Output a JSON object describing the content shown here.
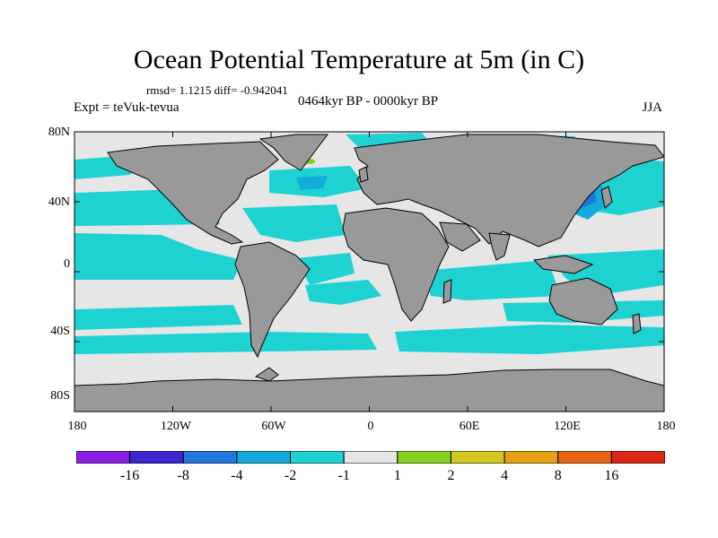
{
  "title": "Ocean Potential Temperature at 5m (in C)",
  "stats": "rmsd= 1.1215 diff= -0.942041",
  "experiment": "Expt = teVuk-tevua",
  "period": "0464kyr BP - 0000kyr BP",
  "season": "JJA",
  "lat_labels": [
    "80N",
    "40N",
    "0",
    "40S",
    "80S"
  ],
  "lon_labels": [
    "180",
    "120W",
    "60W",
    "0",
    "60E",
    "120E",
    "180"
  ],
  "colorbar": {
    "labels": [
      "-16",
      "-8",
      "-4",
      "-2",
      "-1",
      "1",
      "2",
      "4",
      "8",
      "16"
    ],
    "colors": [
      "#8c1ee6",
      "#3c28d2",
      "#1e78dc",
      "#14aadc",
      "#1ed2d2",
      "#e6e6e6",
      "#82d21e",
      "#d2c81e",
      "#e6a014",
      "#e66414",
      "#dc2814"
    ]
  },
  "map_colors": {
    "land": "#999999",
    "ocean_neutral": "#e6e6e6",
    "anomaly_cool": "#1ed2d2",
    "anomaly_cold": "#14aadc",
    "anomaly_colder": "#1e78dc",
    "anomaly_warm": "#82d21e",
    "coast": "#000000"
  }
}
